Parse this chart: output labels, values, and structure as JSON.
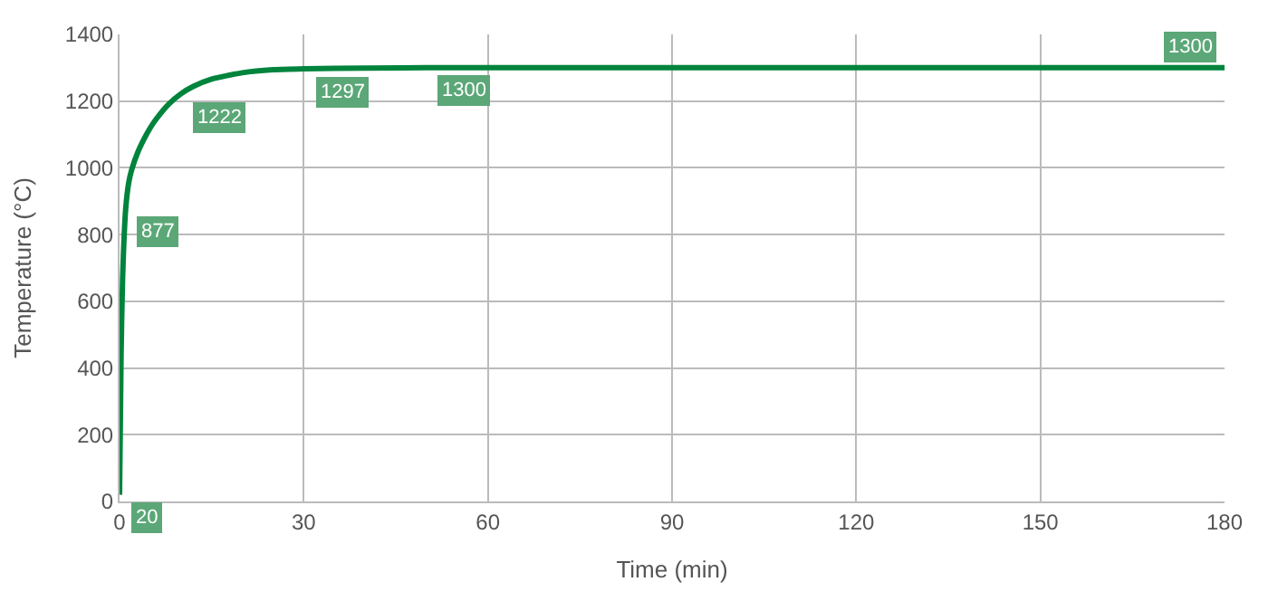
{
  "chart_data": {
    "type": "line",
    "xlabel": "Time (min)",
    "ylabel": "Temperature (°C)",
    "x": [
      0,
      0.25,
      0.5,
      1,
      1.5,
      2,
      3,
      4,
      5,
      6,
      8,
      10,
      12,
      15,
      20,
      25,
      30,
      40,
      50,
      180
    ],
    "series": [
      {
        "color": "#00843d",
        "values": [
          20,
          439,
          670,
          877,
          956,
          996,
          1048,
          1087,
          1120,
          1147,
          1191,
          1222,
          1244,
          1266,
          1285,
          1294,
          1297,
          1299,
          1300,
          1300
        ],
        "value_labels": [
          "20",
          null,
          null,
          "877",
          null,
          null,
          null,
          null,
          null,
          null,
          null,
          "1222",
          null,
          null,
          null,
          null,
          "1297",
          null,
          "1300",
          "1300"
        ]
      }
    ],
    "xlim": [
      0,
      180
    ],
    "xticks": [
      0,
      30,
      60,
      90,
      120,
      150,
      180
    ],
    "ylim": [
      0,
      1400
    ],
    "yticks": [
      0,
      200,
      400,
      600,
      800,
      1000,
      1200,
      1400
    ],
    "grid": true,
    "marker": "none",
    "line_style": "solid"
  }
}
